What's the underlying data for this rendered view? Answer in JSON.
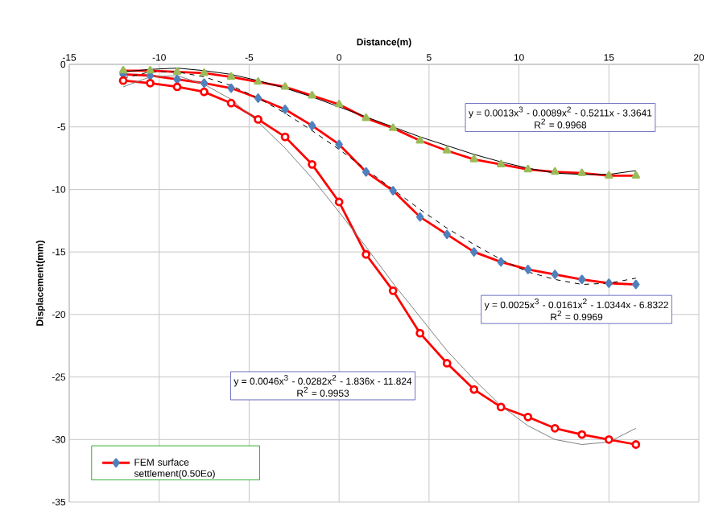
{
  "chart_data": {
    "type": "line",
    "xlabel": "Distance(m)",
    "ylabel": "Displacement(mm)",
    "x": [
      -12,
      -10.5,
      -9,
      -7.5,
      -6,
      -4.5,
      -3,
      -1.5,
      0,
      1.5,
      3,
      4.5,
      6,
      7.5,
      9,
      10.5,
      12,
      13.5,
      15,
      16.5
    ],
    "series": [
      {
        "name": "FEM surface settlement(0.50Eo)",
        "color": "#4f81bd",
        "marker": "diamond",
        "values": [
          -0.8,
          -0.9,
          -1.2,
          -1.5,
          -1.9,
          -2.7,
          -3.6,
          -4.9,
          -6.4,
          -8.6,
          -10.1,
          -12.2,
          -13.6,
          -15.0,
          -15.8,
          -16.4,
          -16.8,
          -17.2,
          -17.5,
          -17.6
        ]
      },
      {
        "color": "#ff0000",
        "marker": "circle",
        "values": [
          -1.3,
          -1.5,
          -1.8,
          -2.2,
          -3.1,
          -4.4,
          -5.8,
          -8.0,
          -11.0,
          -15.2,
          -18.1,
          -21.5,
          -23.9,
          -26.0,
          -27.4,
          -28.2,
          -29.1,
          -29.6,
          -30.0,
          -30.4
        ]
      },
      {
        "color": "#9bbb59",
        "marker": "triangle",
        "values": [
          -0.5,
          -0.5,
          -0.6,
          -0.7,
          -1.0,
          -1.4,
          -1.8,
          -2.5,
          -3.2,
          -4.3,
          -5.1,
          -6.1,
          -6.9,
          -7.6,
          -8.0,
          -8.4,
          -8.6,
          -8.7,
          -8.9,
          -8.9
        ]
      },
      {
        "type": "line",
        "color": "#000000",
        "marker": "none",
        "line_style": "solid",
        "values": [
          -0.6,
          -0.4,
          -0.3,
          -0.5,
          -0.8,
          -1.3,
          -1.9,
          -2.6,
          -3.4,
          -4.2,
          -5.0,
          -5.8,
          -6.5,
          -7.2,
          -7.8,
          -8.3,
          -8.7,
          -8.8,
          -8.8,
          -8.5
        ]
      },
      {
        "type": "line",
        "color": "#000000",
        "marker": "none",
        "line_style": "dashed",
        "values": [
          -1.1,
          -0.6,
          -0.6,
          -1.0,
          -1.7,
          -2.7,
          -3.9,
          -5.3,
          -6.8,
          -8.4,
          -10.0,
          -11.6,
          -13.1,
          -14.4,
          -15.6,
          -16.6,
          -17.2,
          -17.6,
          -17.5,
          -17.1
        ]
      },
      {
        "type": "line",
        "color": "#808080",
        "marker": "none",
        "line_style": "solid",
        "values": [
          -1.8,
          -1.0,
          -0.9,
          -1.6,
          -2.8,
          -4.6,
          -6.7,
          -9.1,
          -11.8,
          -14.6,
          -17.5,
          -20.2,
          -22.9,
          -25.2,
          -27.3,
          -28.9,
          -30.0,
          -30.4,
          -30.2,
          -29.1
        ]
      }
    ],
    "xlim": [
      -15,
      20
    ],
    "ylim": [
      -35,
      0
    ],
    "xticks": [
      -15,
      -10,
      -5,
      0,
      5,
      10,
      15,
      20
    ],
    "yticks": [
      -35,
      -30,
      -25,
      -20,
      -15,
      -10,
      -5,
      0
    ],
    "grid": true,
    "legend": "bottom left",
    "annotations": [
      "y = 0.0013x$^{3}$ - 0.0089x$^{2}$ - 0.5211x - 3.3641",
      "R$^{2}$ = 0.9968",
      "y = 0.0025x$^{3}$ - 0.0161x$^{2}$ - 1.0344x - 6.8322",
      "R$^{2}$ = 0.9969",
      "y = 0.0046x$^{3}$ - 0.0282x$^{2}$ - 1.836x - 11.824",
      "R$^{2}$ = 0.9953"
    ]
  }
}
